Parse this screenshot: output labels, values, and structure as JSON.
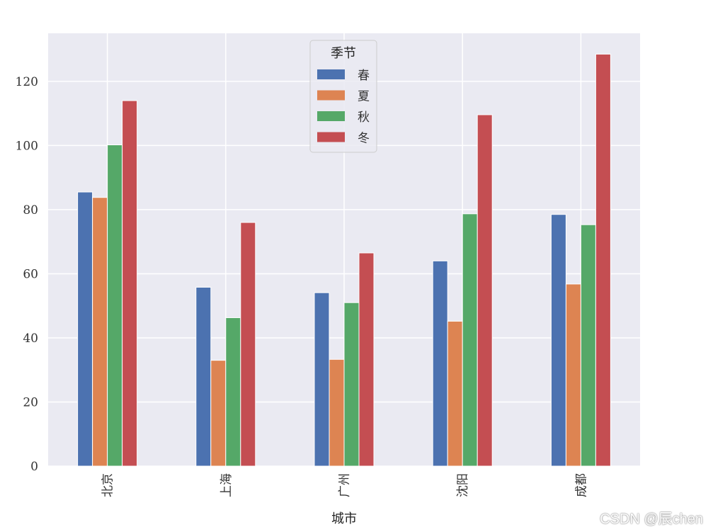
{
  "chart_data": {
    "type": "bar",
    "title": "",
    "xlabel": "城市",
    "ylabel": "",
    "categories": [
      "北京",
      "上海",
      "广州",
      "沈阳",
      "成都"
    ],
    "series": [
      {
        "name": "春",
        "color": "#4c72b0",
        "values": [
          85.5,
          55.8,
          54.1,
          64.0,
          78.5
        ]
      },
      {
        "name": "夏",
        "color": "#dd8452",
        "values": [
          83.8,
          33.0,
          33.3,
          45.2,
          56.8
        ]
      },
      {
        "name": "秋",
        "color": "#55a868",
        "values": [
          100.2,
          46.3,
          51.0,
          78.7,
          75.3
        ]
      },
      {
        "name": "冬",
        "color": "#c44e52",
        "values": [
          114.0,
          76.0,
          66.5,
          109.6,
          128.5
        ]
      }
    ],
    "ylim": [
      0,
      135
    ],
    "yticks": [
      0,
      20,
      40,
      60,
      80,
      100,
      120
    ],
    "grid": true,
    "legend": {
      "title": "季节",
      "placement": "top-center"
    },
    "background": "#eaeaf2",
    "grid_color": "#ffffff"
  },
  "watermark": "CSDN @辰chen"
}
